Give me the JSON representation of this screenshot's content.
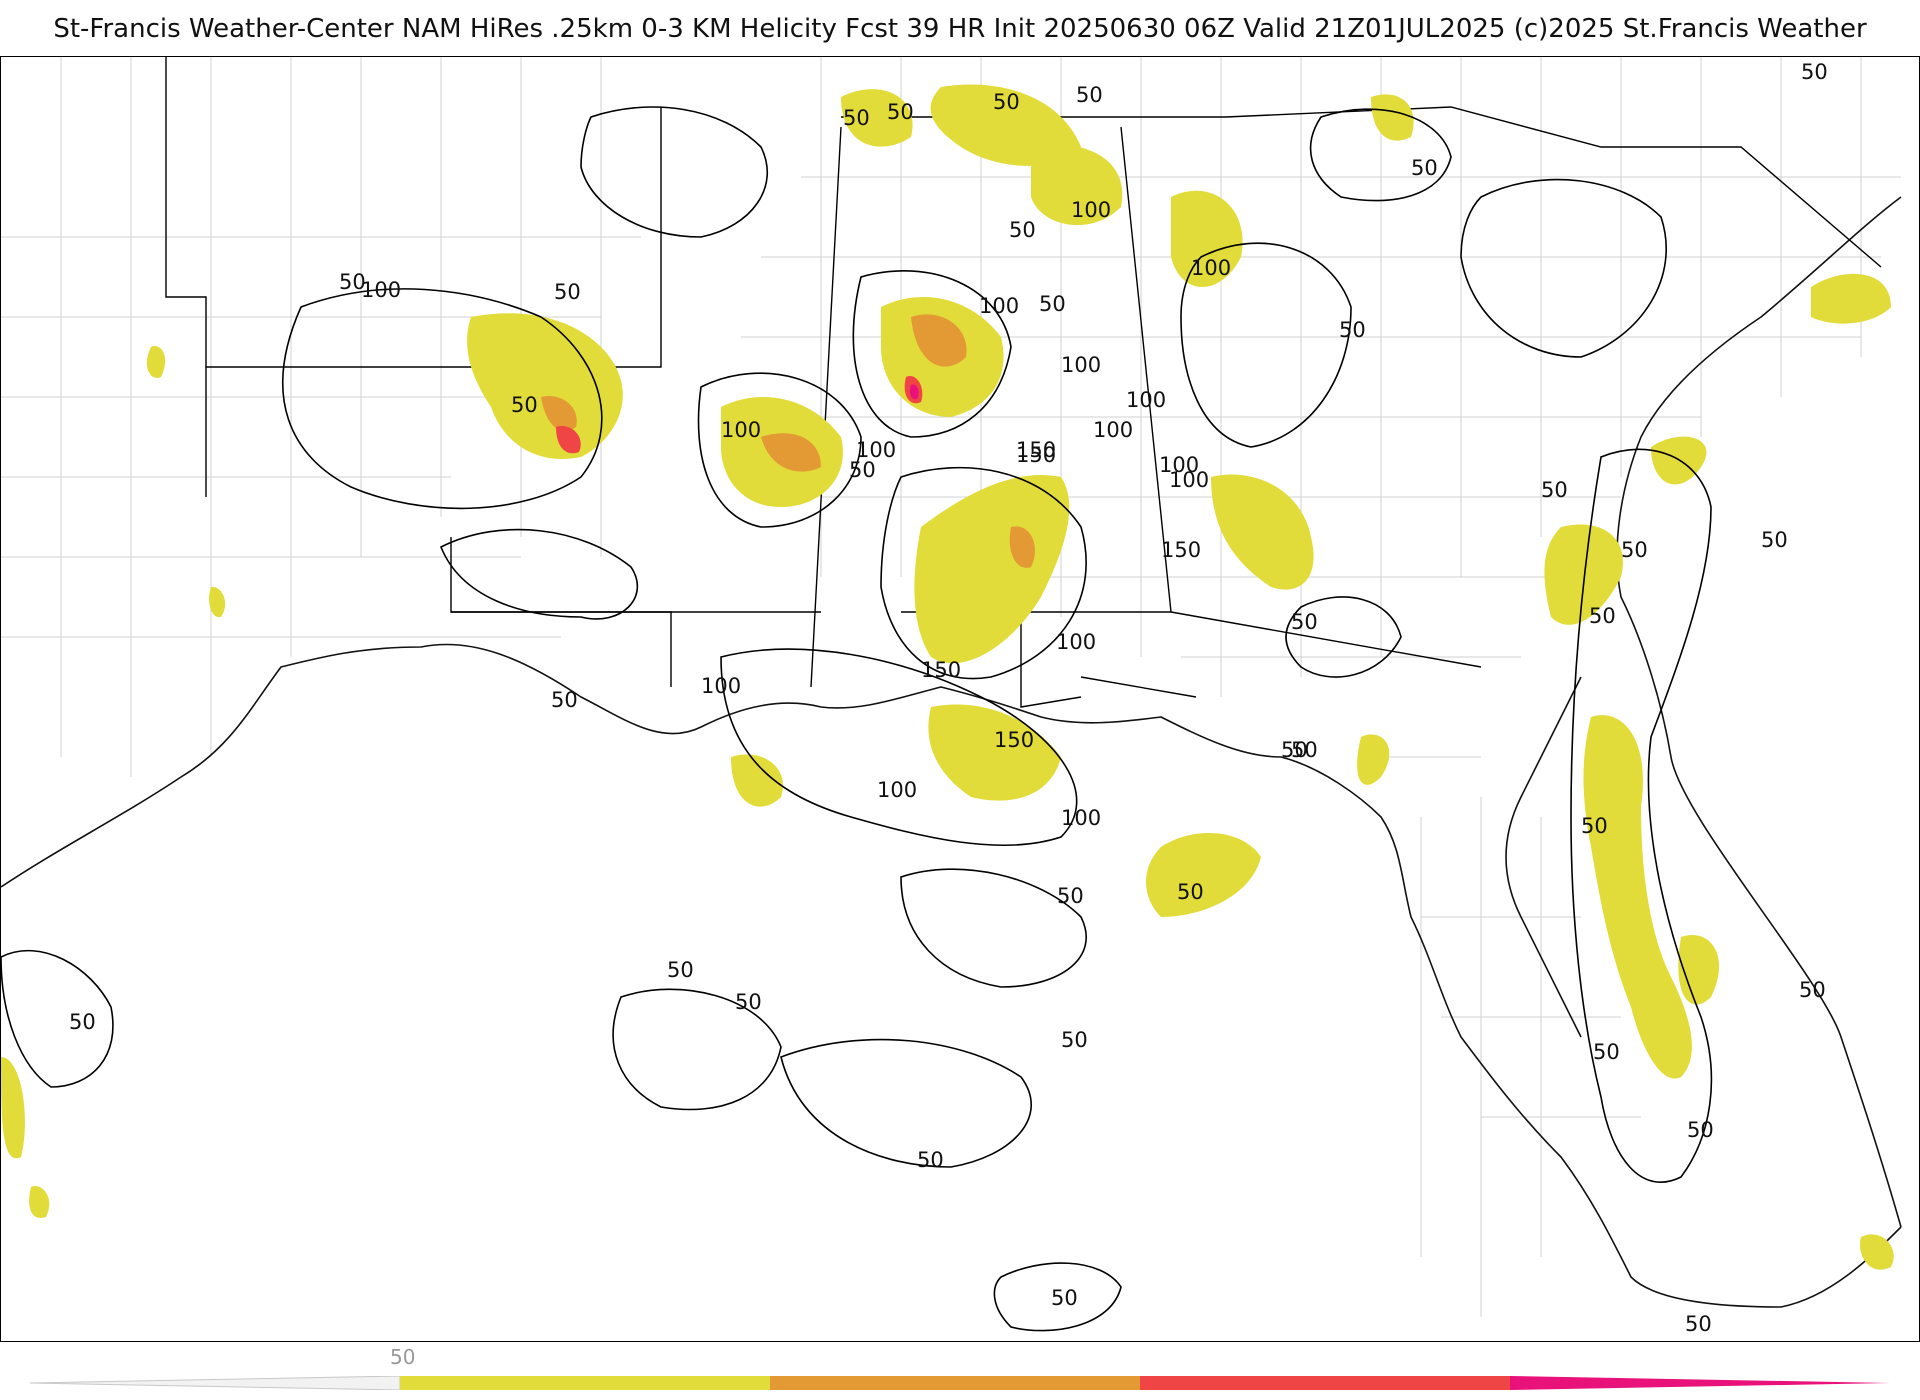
{
  "title": "St-Francis Weather-Center NAM HiRes .25km 0-3 KM Helicity Fcst 39 HR Init 20250630 06Z  Valid 21Z01JUL2025     (c)2025 St.Francis Weather",
  "colorbar": {
    "tick_label": "50",
    "colors": [
      "#e2dc3a",
      "#e39a35",
      "#ef4545",
      "#e8127a"
    ]
  },
  "colors": {
    "fill_50": "#e2dc3a",
    "fill_100": "#e39a35",
    "fill_150": "#ef4545",
    "fill_200": "#e8127a",
    "coast": "#222222",
    "county": "#cccccc",
    "contour": "#000000"
  },
  "contour_labels": [
    "50",
    "50",
    "50",
    "50",
    "50",
    "100",
    "50",
    "100",
    "100",
    "50",
    "100",
    "50",
    "50",
    "150",
    "100",
    "100",
    "100",
    "100",
    "100",
    "50",
    "150",
    "100",
    "150",
    "100",
    "100",
    "50",
    "50",
    "50",
    "150",
    "50",
    "100",
    "150",
    "100",
    "50",
    "100",
    "50",
    "50",
    "50",
    "50",
    "50",
    "50",
    "50",
    "50",
    "50",
    "50",
    "50",
    "50",
    "50",
    "50",
    "50",
    "50",
    "50",
    "50",
    "50"
  ]
}
